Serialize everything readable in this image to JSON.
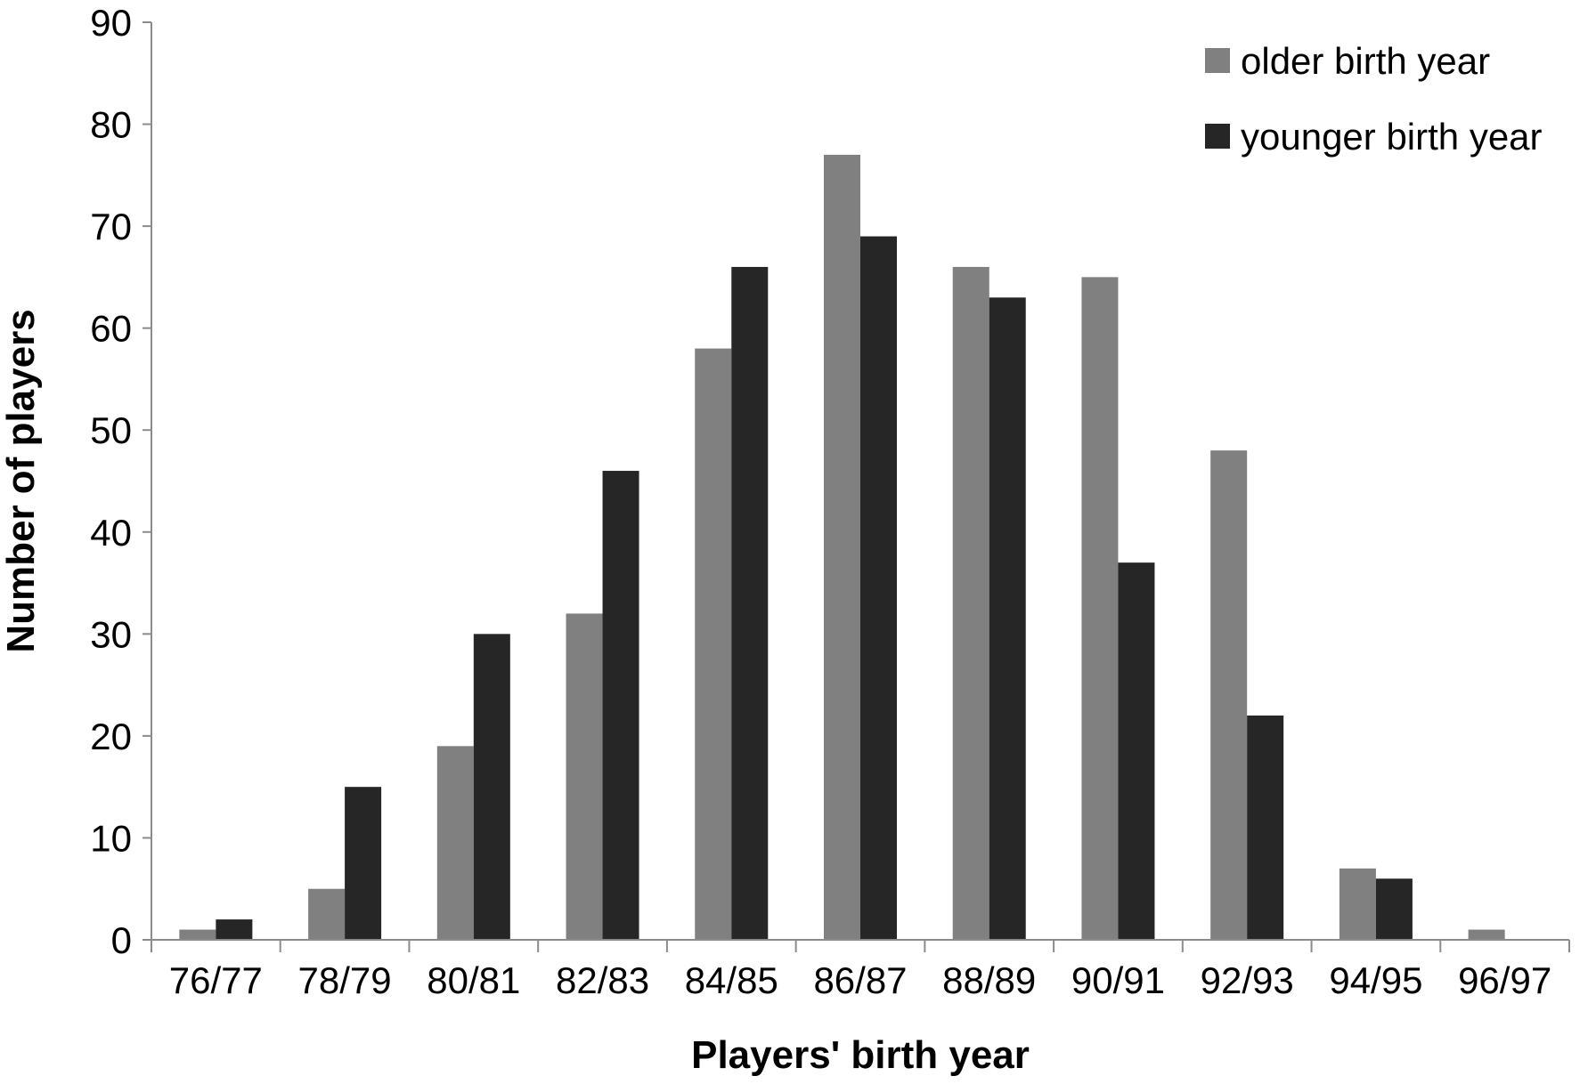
{
  "chart_data": {
    "type": "bar",
    "xlabel": "Players' birth year",
    "ylabel": "Number of players",
    "ylim": [
      0,
      90
    ],
    "yticks": [
      0,
      10,
      20,
      30,
      40,
      50,
      60,
      70,
      80,
      90
    ],
    "categories": [
      "76/77",
      "78/79",
      "80/81",
      "82/83",
      "84/85",
      "86/87",
      "88/89",
      "90/91",
      "92/93",
      "94/95",
      "96/97"
    ],
    "series": [
      {
        "name": "older birth year",
        "color": "#808080",
        "values": [
          1,
          5,
          19,
          32,
          58,
          77,
          66,
          65,
          48,
          7,
          1
        ]
      },
      {
        "name": "younger birth year",
        "color": "#262626",
        "values": [
          2,
          15,
          30,
          46,
          66,
          69,
          63,
          37,
          22,
          6,
          0
        ]
      }
    ],
    "grid": false,
    "legend_position": "top-right"
  }
}
